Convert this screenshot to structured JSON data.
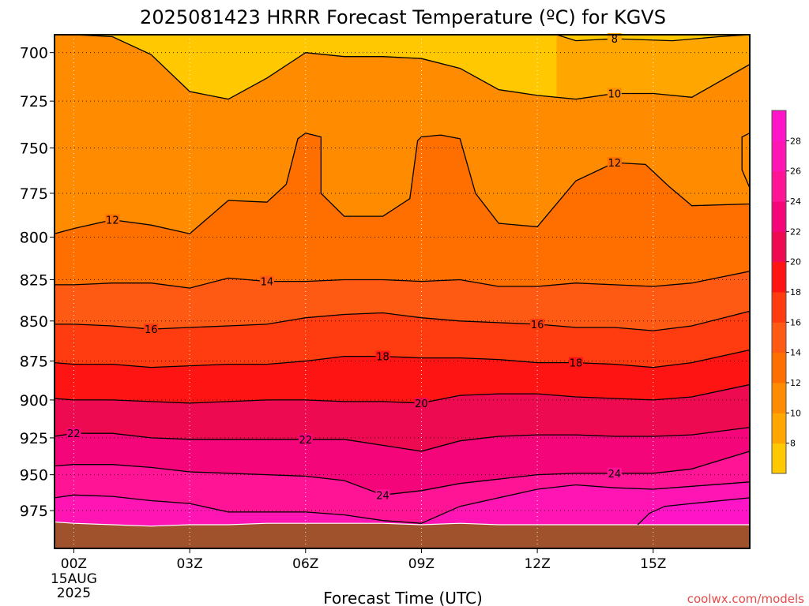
{
  "chart_data": {
    "type": "contour",
    "title": "2025081423 HRRR Forecast Temperature (ºC) for KGVS",
    "xlabel": "Forecast Time (UTC)",
    "ylabel": "",
    "y_scale": "log",
    "y_inverted": true,
    "x_range_hours": [
      -0.5,
      17.5
    ],
    "y_range_hpa": [
      691,
      1002
    ],
    "x_ticks": [
      {
        "hour": 0,
        "label": "00Z",
        "sub": [
          "15AUG",
          "2025"
        ]
      },
      {
        "hour": 3,
        "label": "03Z",
        "sub": []
      },
      {
        "hour": 6,
        "label": "06Z",
        "sub": []
      },
      {
        "hour": 9,
        "label": "09Z",
        "sub": []
      },
      {
        "hour": 12,
        "label": "12Z",
        "sub": []
      },
      {
        "hour": 15,
        "label": "15Z",
        "sub": []
      }
    ],
    "y_ticks": [
      700,
      725,
      750,
      775,
      800,
      825,
      850,
      875,
      900,
      925,
      950,
      975
    ],
    "grid": "dotted",
    "surface_pressure_hpa": 985,
    "contour_interval": 2,
    "fill_colors": {
      "6": "#ffc800",
      "8": "#ffa600",
      "10": "#ff8c00",
      "12": "#ff6f00",
      "14": "#ff5a14",
      "16": "#ff3c10",
      "18": "#ff1414",
      "20": "#ee0a50",
      "22": "#f5057a",
      "24": "#ff1496",
      "26": "#ff14b4",
      "28": "#ff14c8"
    },
    "ground_color": "#a0522d",
    "contours": [
      {
        "level": 8,
        "label": "8",
        "label_points": [
          [
            14.0,
            693
          ]
        ],
        "points": [
          [
            12.5,
            691
          ],
          [
            13.0,
            694
          ],
          [
            14.0,
            693
          ],
          [
            15.5,
            694
          ],
          [
            16.7,
            692
          ],
          [
            17.5,
            691
          ]
        ]
      },
      {
        "level": 10,
        "label": "10",
        "label_points": [
          [
            14.0,
            721
          ]
        ],
        "points": [
          [
            -0.5,
            691
          ],
          [
            0,
            691
          ],
          [
            1,
            692
          ],
          [
            2,
            701
          ],
          [
            3,
            720
          ],
          [
            4,
            724
          ],
          [
            5,
            713
          ],
          [
            6,
            700
          ],
          [
            7,
            702
          ],
          [
            8,
            702
          ],
          [
            9,
            703
          ],
          [
            10,
            708
          ],
          [
            11,
            719
          ],
          [
            12,
            722
          ],
          [
            13,
            724
          ],
          [
            14,
            721
          ],
          [
            15,
            721
          ],
          [
            16,
            723
          ],
          [
            17.5,
            706
          ]
        ]
      },
      {
        "level": 12,
        "label": "12",
        "label_points": [
          [
            1.0,
            790
          ],
          [
            14.0,
            758
          ]
        ],
        "points": [
          [
            -0.5,
            798
          ],
          [
            0,
            795
          ],
          [
            1,
            790
          ],
          [
            2,
            793
          ],
          [
            3,
            798
          ],
          [
            4,
            779
          ],
          [
            5,
            780
          ],
          [
            5.5,
            770
          ],
          [
            5.8,
            745
          ],
          [
            6,
            742
          ],
          [
            6.4,
            744
          ],
          [
            6.4,
            775
          ],
          [
            7,
            788
          ],
          [
            8,
            788
          ],
          [
            8.7,
            778
          ],
          [
            8.9,
            746
          ],
          [
            9,
            744
          ],
          [
            9.5,
            743
          ],
          [
            10,
            745
          ],
          [
            10.4,
            775
          ],
          [
            11,
            792
          ],
          [
            12,
            794
          ],
          [
            13,
            768
          ],
          [
            14,
            758
          ],
          [
            14.8,
            759
          ],
          [
            15.4,
            771
          ],
          [
            16,
            782
          ],
          [
            17.5,
            781
          ]
        ],
        "extra": [
          [
            17.5,
            742
          ],
          [
            17.3,
            744
          ],
          [
            17.3,
            762
          ],
          [
            17.5,
            772
          ]
        ]
      },
      {
        "level": 14,
        "label": "14",
        "label_points": [
          [
            5.0,
            826
          ]
        ],
        "points": [
          [
            -0.5,
            828
          ],
          [
            0,
            828
          ],
          [
            1,
            827
          ],
          [
            2,
            827
          ],
          [
            3,
            830
          ],
          [
            4,
            824
          ],
          [
            5,
            826
          ],
          [
            6,
            826
          ],
          [
            7,
            825
          ],
          [
            8,
            825
          ],
          [
            9,
            826
          ],
          [
            10,
            825
          ],
          [
            11,
            829
          ],
          [
            12,
            829
          ],
          [
            13,
            827
          ],
          [
            14,
            828
          ],
          [
            15,
            829
          ],
          [
            16,
            827
          ],
          [
            17.5,
            820
          ]
        ]
      },
      {
        "level": 16,
        "label": "16",
        "label_points": [
          [
            2.0,
            855
          ],
          [
            12.0,
            852
          ]
        ],
        "points": [
          [
            -0.5,
            852
          ],
          [
            0,
            852
          ],
          [
            1,
            853
          ],
          [
            2,
            855
          ],
          [
            3,
            854
          ],
          [
            4,
            853
          ],
          [
            5,
            852
          ],
          [
            6,
            848
          ],
          [
            7,
            846
          ],
          [
            8,
            845
          ],
          [
            9,
            848
          ],
          [
            10,
            850
          ],
          [
            11,
            851
          ],
          [
            12,
            852
          ],
          [
            13,
            854
          ],
          [
            14,
            854
          ],
          [
            15,
            856
          ],
          [
            16,
            853
          ],
          [
            17.5,
            844
          ]
        ]
      },
      {
        "level": 18,
        "label": "18",
        "label_points": [
          [
            8.0,
            872
          ],
          [
            13.0,
            876
          ]
        ],
        "points": [
          [
            -0.5,
            876
          ],
          [
            0,
            877
          ],
          [
            1,
            877
          ],
          [
            2,
            879
          ],
          [
            3,
            878
          ],
          [
            4,
            877
          ],
          [
            5,
            877
          ],
          [
            6,
            875
          ],
          [
            7,
            872
          ],
          [
            8,
            872
          ],
          [
            9,
            873
          ],
          [
            10,
            873
          ],
          [
            11,
            874
          ],
          [
            12,
            876
          ],
          [
            13,
            876
          ],
          [
            14,
            877
          ],
          [
            15,
            879
          ],
          [
            16,
            876
          ],
          [
            17.5,
            868
          ]
        ]
      },
      {
        "level": 20,
        "label": "20",
        "label_points": [
          [
            9.0,
            902
          ]
        ],
        "points": [
          [
            -0.5,
            899
          ],
          [
            0,
            900
          ],
          [
            1,
            900
          ],
          [
            2,
            901
          ],
          [
            3,
            902
          ],
          [
            4,
            901
          ],
          [
            5,
            900
          ],
          [
            6,
            900
          ],
          [
            7,
            901
          ],
          [
            8,
            901
          ],
          [
            9,
            902
          ],
          [
            10,
            897
          ],
          [
            11,
            896
          ],
          [
            12,
            896
          ],
          [
            13,
            898
          ],
          [
            14,
            899
          ],
          [
            15,
            900
          ],
          [
            16,
            898
          ],
          [
            17.5,
            890
          ]
        ]
      },
      {
        "level": 22,
        "label": "22",
        "label_points": [
          [
            0.0,
            922
          ],
          [
            6.0,
            926
          ]
        ],
        "points": [
          [
            -0.5,
            924
          ],
          [
            0,
            922
          ],
          [
            1,
            922
          ],
          [
            2,
            925
          ],
          [
            3,
            926
          ],
          [
            4,
            926
          ],
          [
            5,
            926
          ],
          [
            6,
            926
          ],
          [
            7,
            926
          ],
          [
            8,
            930
          ],
          [
            9,
            934
          ],
          [
            10,
            927
          ],
          [
            11,
            924
          ],
          [
            12,
            923
          ],
          [
            13,
            923
          ],
          [
            14,
            924
          ],
          [
            15,
            924
          ],
          [
            16,
            923
          ],
          [
            17.5,
            918
          ]
        ]
      },
      {
        "level": 24,
        "label": "24",
        "label_points": [
          [
            8.0,
            964
          ],
          [
            14.0,
            949
          ]
        ],
        "points": [
          [
            -0.5,
            944
          ],
          [
            0,
            943
          ],
          [
            1,
            943
          ],
          [
            2,
            945
          ],
          [
            3,
            948
          ],
          [
            4,
            949
          ],
          [
            5,
            950
          ],
          [
            6,
            951
          ],
          [
            7,
            954
          ],
          [
            8,
            964
          ],
          [
            9,
            961
          ],
          [
            10,
            956
          ],
          [
            11,
            953
          ],
          [
            12,
            950
          ],
          [
            13,
            949
          ],
          [
            14,
            949
          ],
          [
            15,
            949
          ],
          [
            16,
            946
          ],
          [
            17.5,
            934
          ]
        ]
      },
      {
        "level": 26,
        "label": "",
        "label_points": [],
        "points": [
          [
            -0.5,
            966
          ],
          [
            0,
            964
          ],
          [
            1,
            965
          ],
          [
            2,
            968
          ],
          [
            3,
            970
          ],
          [
            4,
            976
          ],
          [
            5,
            976
          ],
          [
            6,
            976
          ],
          [
            7,
            978
          ],
          [
            8,
            982
          ],
          [
            9,
            984
          ],
          [
            10,
            972
          ],
          [
            11,
            966
          ],
          [
            12,
            960
          ],
          [
            13,
            957
          ],
          [
            14,
            959
          ],
          [
            15,
            960
          ],
          [
            16,
            958
          ],
          [
            17.5,
            955
          ]
        ]
      },
      {
        "level": 28,
        "label": "",
        "label_points": [],
        "points": [
          [
            14.6,
            985
          ],
          [
            14.9,
            977
          ],
          [
            15.3,
            972
          ],
          [
            16,
            970
          ],
          [
            17.5,
            966
          ]
        ]
      }
    ],
    "sfc_line": [
      [
        -0.5,
        983
      ],
      [
        0,
        984
      ],
      [
        1,
        985
      ],
      [
        2,
        986
      ],
      [
        3,
        985
      ],
      [
        4,
        985
      ],
      [
        5,
        984
      ],
      [
        6,
        984
      ],
      [
        7,
        984
      ],
      [
        8,
        984
      ],
      [
        9,
        985
      ],
      [
        10,
        984
      ],
      [
        11,
        985
      ],
      [
        12,
        985
      ],
      [
        13,
        985
      ],
      [
        14,
        985
      ],
      [
        15,
        985
      ],
      [
        16,
        985
      ],
      [
        17.5,
        985
      ]
    ],
    "colorbar": {
      "levels": [
        8,
        10,
        12,
        14,
        16,
        18,
        20,
        22,
        24,
        26,
        28
      ]
    },
    "watermark": "coolwx.com/models"
  }
}
